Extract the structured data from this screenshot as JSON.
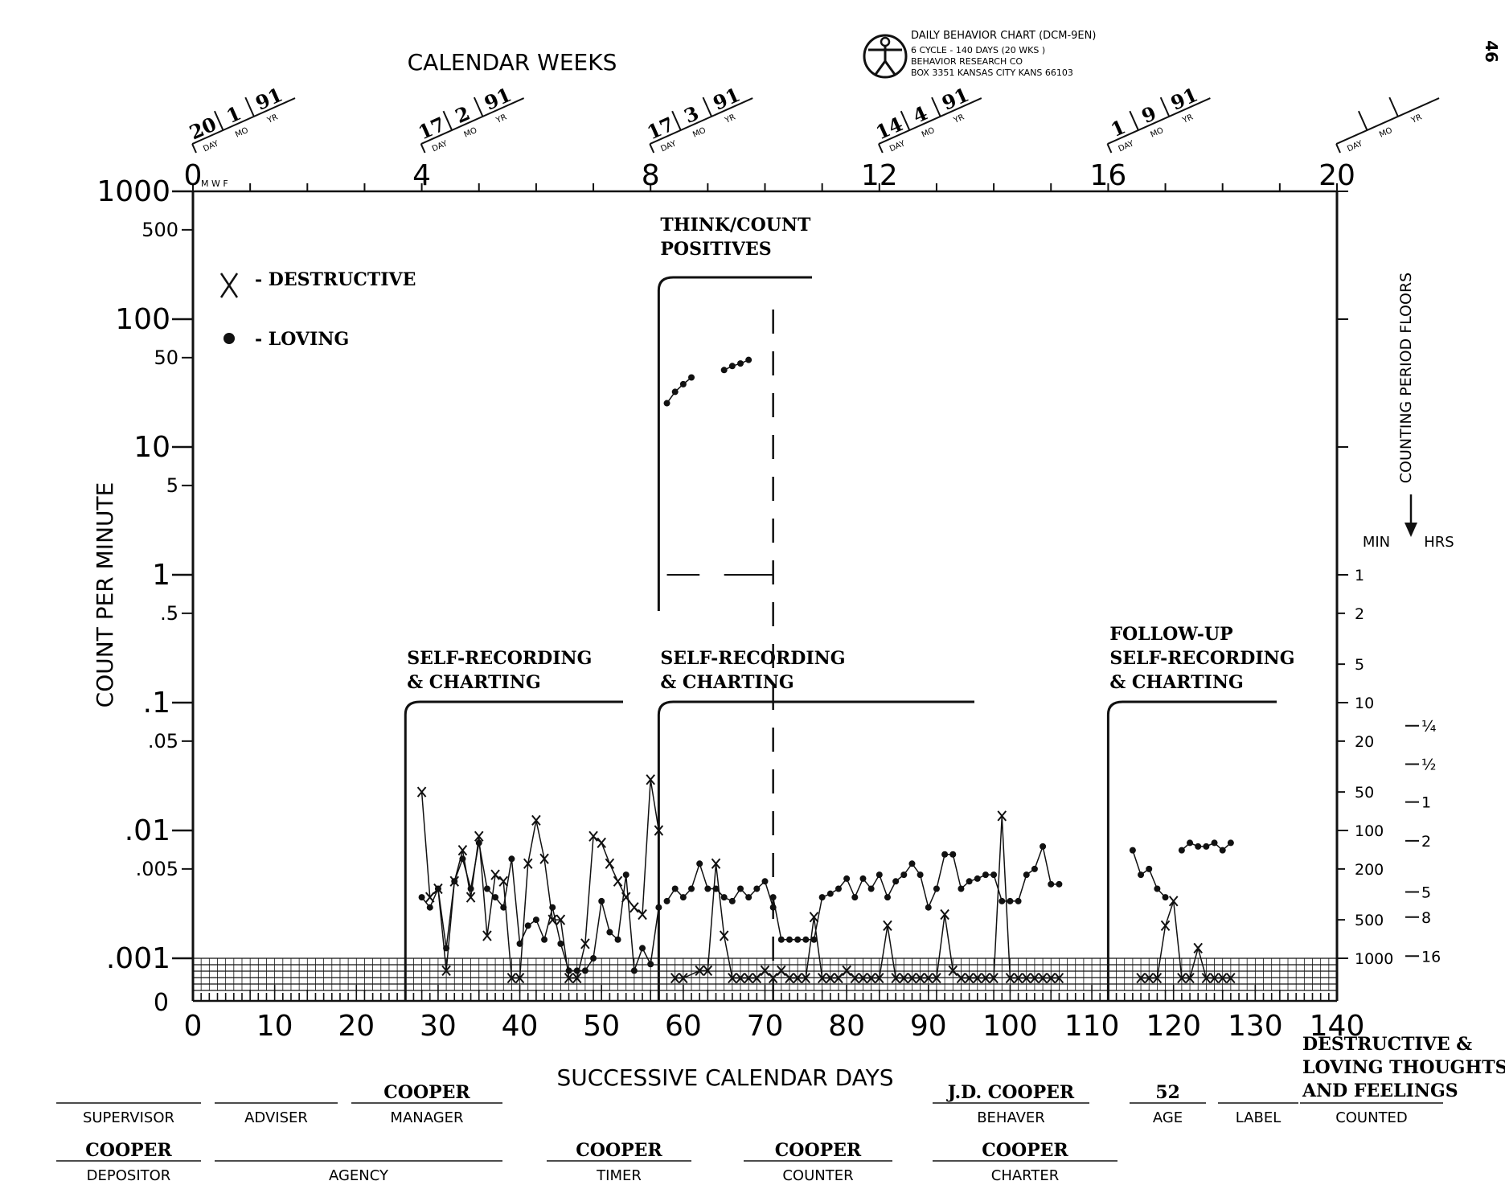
{
  "page_number": "46",
  "header": {
    "calendar_weeks_title": "CALENDAR WEEKS",
    "logo_lines": [
      "DAILY BEHAVIOR CHART (DCM-9EN)",
      "6 CYCLE - 140 DAYS (20 WKS )",
      "BEHAVIOR RESEARCH CO",
      "BOX 3351  KANSAS CITY  KANS  66103"
    ],
    "date_field_labels": [
      "DAY",
      "MO",
      "YR"
    ],
    "week_ticks": [
      "0",
      "4",
      "8",
      "12",
      "16",
      "20"
    ],
    "week_dates": [
      {
        "week": 0,
        "day": "20",
        "mo": "1",
        "yr": "91"
      },
      {
        "week": 4,
        "day": "17",
        "mo": "2",
        "yr": "91"
      },
      {
        "week": 8,
        "day": "17",
        "mo": "3",
        "yr": "91"
      },
      {
        "week": 12,
        "day": "14",
        "mo": "4",
        "yr": "91"
      },
      {
        "week": 16,
        "day": "1",
        "mo": "9",
        "yr": "91"
      },
      {
        "week": 20,
        "day": "",
        "mo": "",
        "yr": ""
      }
    ],
    "mwf": "M W F"
  },
  "axes": {
    "y_label": "COUNT PER MINUTE",
    "x_label": "SUCCESSIVE CALENDAR DAYS",
    "right_label": "COUNTING PERIOD FLOORS",
    "right_min_label": "MIN",
    "right_hrs_label": "HRS"
  },
  "chart_data": {
    "type": "scatter",
    "scale": "log",
    "xlim": [
      0,
      140
    ],
    "ylim": [
      0.001,
      1000
    ],
    "x_ticks": [
      "0",
      "10",
      "20",
      "30",
      "40",
      "50",
      "60",
      "70",
      "80",
      "90",
      "100",
      "110",
      "120",
      "130",
      "140"
    ],
    "y_ticks": [
      {
        "v": 1000,
        "t": "1000",
        "major": true
      },
      {
        "v": 500,
        "t": "500",
        "major": false
      },
      {
        "v": 100,
        "t": "100",
        "major": true
      },
      {
        "v": 50,
        "t": "50",
        "major": false
      },
      {
        "v": 10,
        "t": "10",
        "major": true
      },
      {
        "v": 5,
        "t": "5",
        "major": false
      },
      {
        "v": 1,
        "t": "1",
        "major": true
      },
      {
        "v": 0.5,
        "t": ".5",
        "major": false
      },
      {
        "v": 0.1,
        "t": ".1",
        "major": true
      },
      {
        "v": 0.05,
        "t": ".05",
        "major": false
      },
      {
        "v": 0.01,
        "t": ".01",
        "major": true
      },
      {
        "v": 0.005,
        "t": ".005",
        "major": false
      },
      {
        "v": 0.001,
        "t": ".001",
        "major": true
      }
    ],
    "zero_label": "0",
    "right_floor_min": [
      {
        "v": 1,
        "t": "1"
      },
      {
        "v": 0.5,
        "t": "2"
      },
      {
        "v": 0.2,
        "t": "5"
      },
      {
        "v": 0.1,
        "t": "10"
      },
      {
        "v": 0.05,
        "t": "20"
      },
      {
        "v": 0.02,
        "t": "50"
      },
      {
        "v": 0.01,
        "t": "100"
      },
      {
        "v": 0.005,
        "t": "200"
      },
      {
        "v": 0.002,
        "t": "500"
      },
      {
        "v": 0.001,
        "t": "1000"
      }
    ],
    "right_floor_hrs": [
      {
        "v": 0.066,
        "t": "¼"
      },
      {
        "v": 0.033,
        "t": "½"
      },
      {
        "v": 0.0167,
        "t": "1"
      },
      {
        "v": 0.0083,
        "t": "2"
      },
      {
        "v": 0.0033,
        "t": "5"
      },
      {
        "v": 0.0021,
        "t": "8"
      },
      {
        "v": 0.00104,
        "t": "16"
      }
    ],
    "legend": [
      {
        "marker": "x",
        "label": "- DESTRUCTIVE"
      },
      {
        "marker": "dot",
        "label": "- LOVING"
      }
    ],
    "phases": [
      {
        "x": 26,
        "lines": [
          "SELF-RECORDING",
          "& CHARTING"
        ]
      },
      {
        "x": 57,
        "lines": [
          "SELF-RECORDING",
          "& CHARTING"
        ]
      },
      {
        "x": 57,
        "lines": [
          "THINK/COUNT",
          "POSITIVES"
        ]
      },
      {
        "x": 112,
        "lines": [
          "FOLLOW-UP",
          "SELF-RECORDING",
          "& CHARTING"
        ]
      }
    ],
    "series": [
      {
        "name": "DESTRUCTIVE",
        "marker": "x",
        "segments": [
          [
            [
              28,
              0.02
            ],
            [
              29,
              0.003
            ],
            [
              30,
              0.0035
            ],
            [
              31,
              0.0008
            ],
            [
              32,
              0.004
            ],
            [
              33,
              0.007
            ],
            [
              34,
              0.003
            ],
            [
              35,
              0.009
            ],
            [
              36,
              0.0015
            ],
            [
              37,
              0.0045
            ],
            [
              38,
              0.004
            ],
            [
              39,
              0.0007
            ],
            [
              40,
              0.0007
            ],
            [
              41,
              0.0055
            ],
            [
              42,
              0.012
            ],
            [
              43,
              0.006
            ],
            [
              44,
              0.002
            ],
            [
              45,
              0.002
            ],
            [
              46,
              0.0007
            ],
            [
              47,
              0.0007
            ],
            [
              48,
              0.0013
            ],
            [
              49,
              0.009
            ],
            [
              50,
              0.008
            ],
            [
              51,
              0.0055
            ],
            [
              52,
              0.004
            ],
            [
              53,
              0.003
            ],
            [
              54,
              0.0025
            ],
            [
              55,
              0.0022
            ],
            [
              56,
              0.025
            ],
            [
              57,
              0.01
            ]
          ],
          [
            [
              59,
              0.0007
            ],
            [
              60,
              0.0007
            ],
            [
              62,
              0.0008
            ],
            [
              63,
              0.0008
            ],
            [
              64,
              0.0055
            ],
            [
              65,
              0.0015
            ],
            [
              66,
              0.0007
            ],
            [
              67,
              0.0007
            ],
            [
              68,
              0.0007
            ],
            [
              69,
              0.0007
            ],
            [
              70,
              0.0008
            ],
            [
              71,
              0.0007
            ],
            [
              72,
              0.0008
            ],
            [
              73,
              0.0007
            ],
            [
              74,
              0.0007
            ],
            [
              75,
              0.0007
            ],
            [
              76,
              0.0021
            ],
            [
              77,
              0.0007
            ],
            [
              78,
              0.0007
            ],
            [
              79,
              0.0007
            ],
            [
              80,
              0.0008
            ],
            [
              81,
              0.0007
            ],
            [
              82,
              0.0007
            ],
            [
              83,
              0.0007
            ],
            [
              84,
              0.0007
            ],
            [
              85,
              0.0018
            ],
            [
              86,
              0.0007
            ],
            [
              87,
              0.0007
            ],
            [
              88,
              0.0007
            ],
            [
              89,
              0.0007
            ],
            [
              90,
              0.0007
            ],
            [
              91,
              0.0007
            ],
            [
              92,
              0.0022
            ],
            [
              93,
              0.0008
            ],
            [
              94,
              0.0007
            ],
            [
              95,
              0.0007
            ],
            [
              96,
              0.0007
            ],
            [
              97,
              0.0007
            ],
            [
              98,
              0.0007
            ],
            [
              99,
              0.013
            ],
            [
              100,
              0.0007
            ],
            [
              101,
              0.0007
            ],
            [
              102,
              0.0007
            ],
            [
              103,
              0.0007
            ],
            [
              104,
              0.0007
            ],
            [
              105,
              0.0007
            ],
            [
              106,
              0.0007
            ]
          ],
          [
            [
              116,
              0.0007
            ],
            [
              117,
              0.0007
            ],
            [
              118,
              0.0007
            ],
            [
              119,
              0.0018
            ],
            [
              120,
              0.0028
            ],
            [
              121,
              0.0007
            ],
            [
              122,
              0.0007
            ],
            [
              123,
              0.0012
            ],
            [
              124,
              0.0007
            ],
            [
              125,
              0.0007
            ],
            [
              126,
              0.0007
            ],
            [
              127,
              0.0007
            ]
          ]
        ]
      },
      {
        "name": "LOVING",
        "marker": "dot",
        "segments": [
          [
            [
              28,
              0.003
            ],
            [
              29,
              0.0025
            ],
            [
              30,
              0.0035
            ],
            [
              31,
              0.0012
            ],
            [
              32,
              0.004
            ],
            [
              33,
              0.006
            ],
            [
              34,
              0.0035
            ],
            [
              35,
              0.008
            ],
            [
              36,
              0.0035
            ],
            [
              37,
              0.003
            ],
            [
              38,
              0.0025
            ],
            [
              39,
              0.006
            ],
            [
              40,
              0.0013
            ],
            [
              41,
              0.0018
            ],
            [
              42,
              0.002
            ],
            [
              43,
              0.0014
            ],
            [
              44,
              0.0025
            ],
            [
              45,
              0.0013
            ],
            [
              46,
              0.0008
            ],
            [
              47,
              0.0008
            ],
            [
              48,
              0.0008
            ],
            [
              49,
              0.001
            ],
            [
              50,
              0.0028
            ],
            [
              51,
              0.0016
            ],
            [
              52,
              0.0014
            ],
            [
              53,
              0.0045
            ],
            [
              54,
              0.0008
            ],
            [
              55,
              0.0012
            ],
            [
              56,
              0.0009
            ],
            [
              57,
              0.0025
            ]
          ],
          [
            [
              58,
              0.0028
            ],
            [
              59,
              0.0035
            ],
            [
              60,
              0.003
            ],
            [
              61,
              0.0035
            ],
            [
              62,
              0.0055
            ],
            [
              63,
              0.0035
            ],
            [
              64,
              0.0035
            ],
            [
              65,
              0.003
            ],
            [
              66,
              0.0028
            ],
            [
              67,
              0.0035
            ],
            [
              68,
              0.003
            ],
            [
              69,
              0.0035
            ],
            [
              70,
              0.004
            ],
            [
              71,
              0.0025
            ]
          ],
          [
            [
              71,
              0.003
            ],
            [
              72,
              0.0014
            ],
            [
              73,
              0.0014
            ],
            [
              74,
              0.0014
            ],
            [
              75,
              0.0014
            ],
            [
              76,
              0.0014
            ],
            [
              77,
              0.003
            ],
            [
              78,
              0.0032
            ],
            [
              79,
              0.0035
            ],
            [
              80,
              0.0042
            ],
            [
              81,
              0.003
            ],
            [
              82,
              0.0042
            ],
            [
              83,
              0.0035
            ],
            [
              84,
              0.0045
            ],
            [
              85,
              0.003
            ],
            [
              86,
              0.004
            ],
            [
              87,
              0.0045
            ],
            [
              88,
              0.0055
            ],
            [
              89,
              0.0045
            ],
            [
              90,
              0.0025
            ],
            [
              91,
              0.0035
            ],
            [
              92,
              0.0065
            ],
            [
              93,
              0.0065
            ],
            [
              94,
              0.0035
            ],
            [
              95,
              0.004
            ],
            [
              96,
              0.0042
            ],
            [
              97,
              0.0045
            ],
            [
              98,
              0.0045
            ],
            [
              99,
              0.0028
            ],
            [
              100,
              0.0028
            ],
            [
              101,
              0.0028
            ],
            [
              102,
              0.0045
            ],
            [
              103,
              0.005
            ],
            [
              104,
              0.0075
            ],
            [
              105,
              0.0038
            ],
            [
              106,
              0.0038
            ]
          ],
          [
            [
              115,
              0.007
            ],
            [
              116,
              0.0045
            ],
            [
              117,
              0.005
            ],
            [
              118,
              0.0035
            ],
            [
              119,
              0.003
            ]
          ],
          [
            [
              121,
              0.007
            ],
            [
              122,
              0.008
            ],
            [
              123,
              0.0075
            ],
            [
              124,
              0.0075
            ],
            [
              125,
              0.008
            ],
            [
              126,
              0.007
            ],
            [
              127,
              0.008
            ]
          ]
        ]
      },
      {
        "name": "",
        "marker": "dot",
        "segments": [
          [
            [
              58,
              22
            ],
            [
              59,
              27
            ],
            [
              60,
              31
            ],
            [
              61,
              35
            ]
          ],
          [
            [
              65,
              40
            ],
            [
              66,
              43
            ],
            [
              67,
              45
            ],
            [
              68,
              48
            ]
          ]
        ]
      }
    ]
  },
  "form": {
    "row1": [
      {
        "label": "SUPERVISOR",
        "value": ""
      },
      {
        "label": "ADVISER",
        "value": ""
      },
      {
        "label": "MANAGER",
        "value": "COOPER"
      },
      {
        "label": "BEHAVER",
        "value": "J.D. COOPER"
      },
      {
        "label": "AGE",
        "value": "52"
      },
      {
        "label": "LABEL",
        "value": ""
      },
      {
        "label": "COUNTED",
        "value_lines": [
          "DESTRUCTIVE &",
          "LOVING THOUGHTS",
          "AND FEELINGS"
        ]
      }
    ],
    "row2": [
      {
        "label": "DEPOSITOR",
        "value": "COOPER"
      },
      {
        "label": "AGENCY",
        "value": ""
      },
      {
        "label": "TIMER",
        "value": "COOPER"
      },
      {
        "label": "COUNTER",
        "value": "COOPER"
      },
      {
        "label": "CHARTER",
        "value": "COOPER"
      }
    ]
  }
}
